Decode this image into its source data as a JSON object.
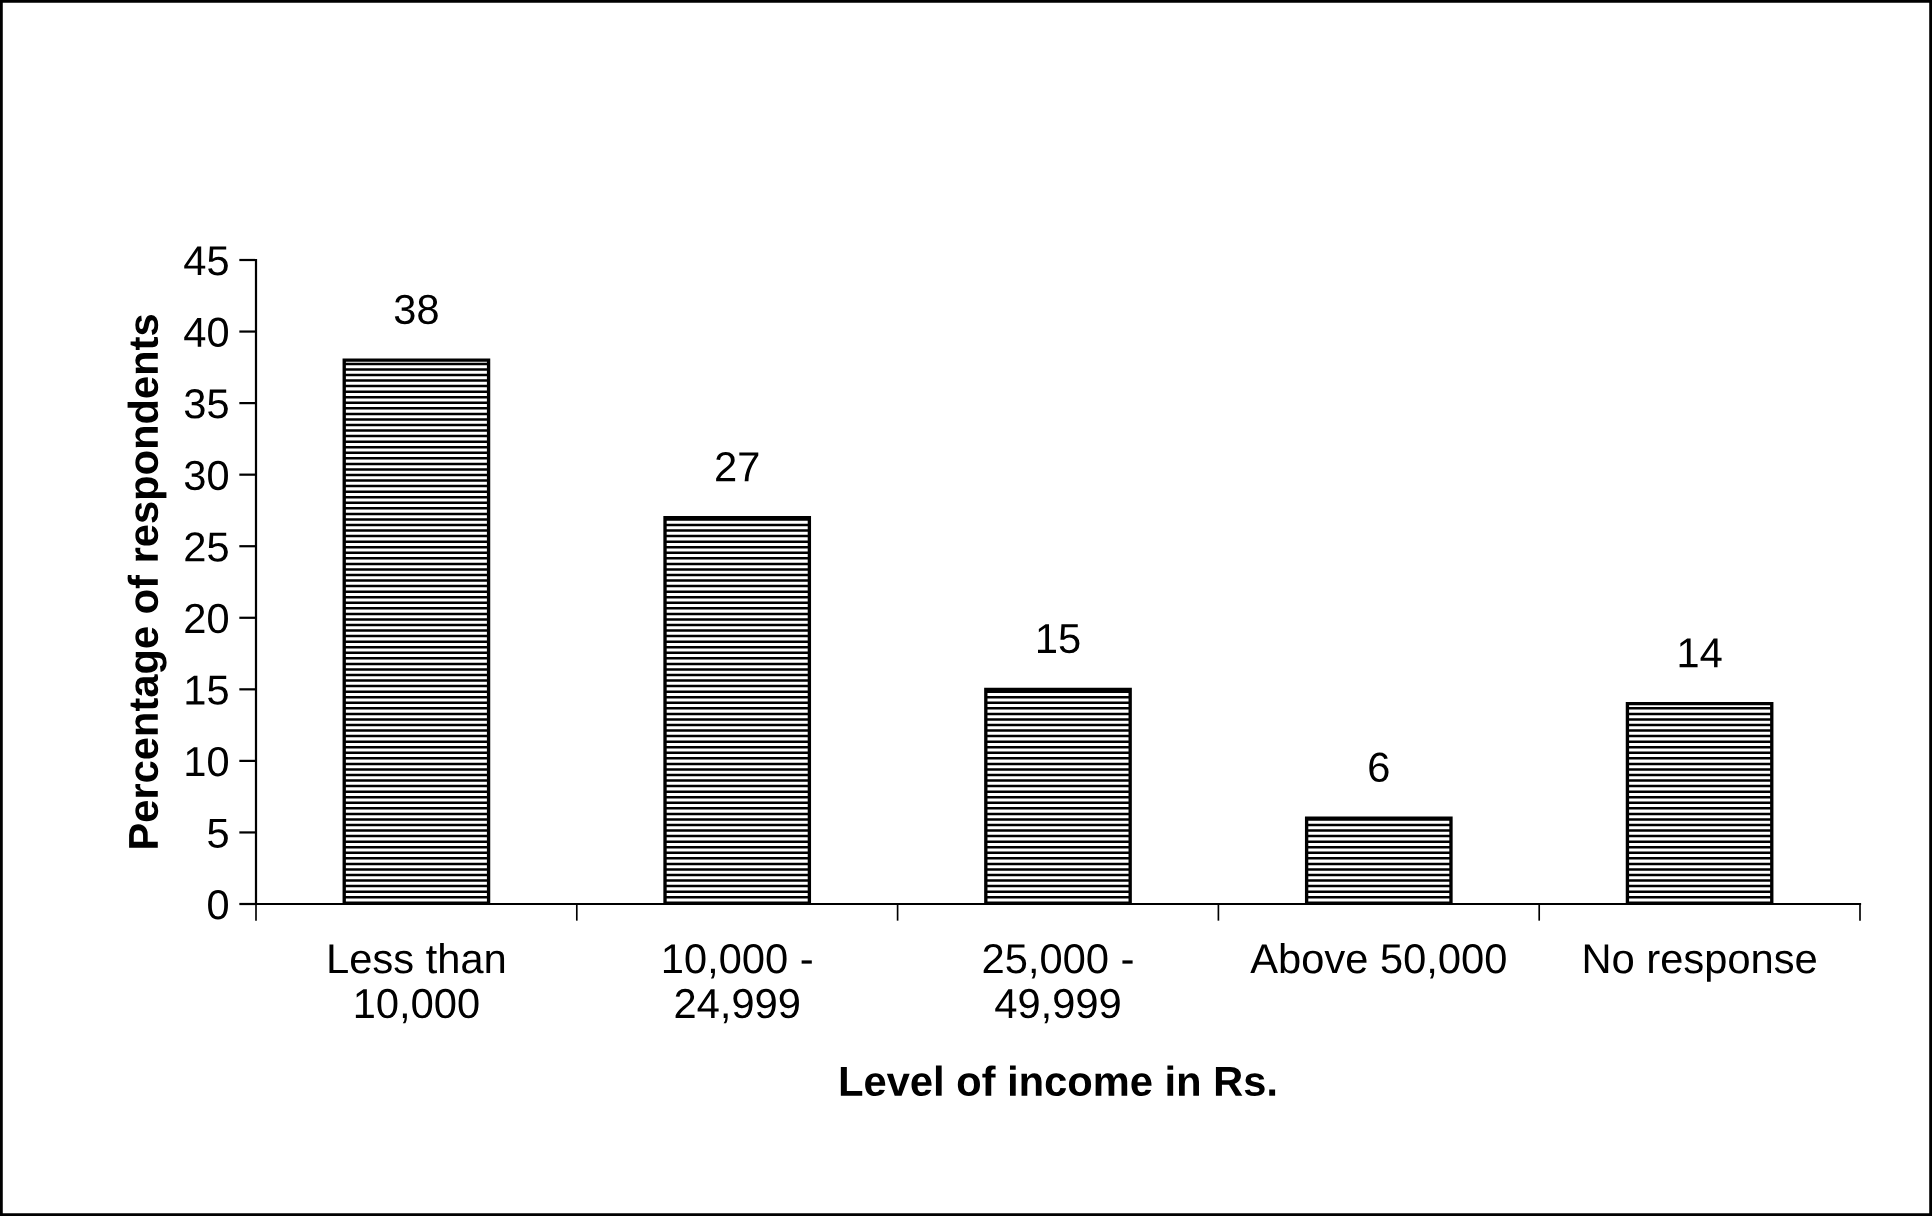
{
  "chart_data": {
    "type": "bar",
    "xlabel": "Level of income in Rs.",
    "ylabel": "Percentage of respondents",
    "categories": [
      "Less than\n10,000",
      "10,000 -\n24,999",
      "25,000 -\n49,999",
      "Above 50,000",
      "No response"
    ],
    "values": [
      38,
      27,
      15,
      6,
      14
    ],
    "color": "#000000",
    "ylim": [
      0,
      45
    ],
    "yticks": [
      0,
      5,
      10,
      15,
      20,
      25,
      30,
      35,
      40,
      45
    ],
    "data_labels": true,
    "grid": false,
    "legend": false
  }
}
